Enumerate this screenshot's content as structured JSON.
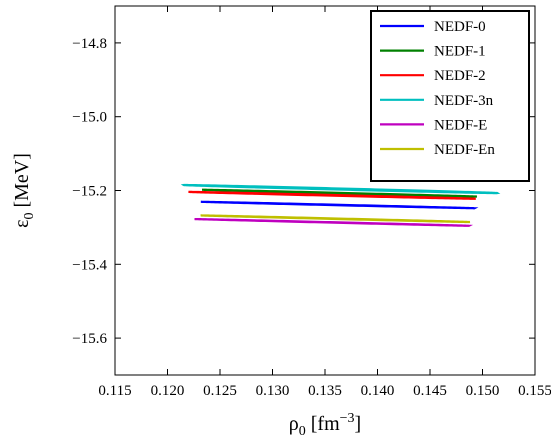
{
  "chart_data": {
    "type": "line",
    "title": "",
    "xlabel": {
      "base": "ρ",
      "sub": "0",
      "unit_pre": " [fm",
      "sup": "−3",
      "unit_post": "]"
    },
    "ylabel": {
      "base": "ε",
      "sub": "0",
      "unit": " [MeV]"
    },
    "xlim": [
      0.115,
      0.155
    ],
    "ylim": [
      -15.7,
      -14.7
    ],
    "x_ticks": [
      0.115,
      0.12,
      0.125,
      0.13,
      0.135,
      0.14,
      0.145,
      0.15,
      0.155
    ],
    "x_tick_labels": [
      "0.115",
      "0.120",
      "0.125",
      "0.130",
      "0.135",
      "0.140",
      "0.145",
      "0.150",
      "0.155"
    ],
    "y_ticks": [
      -14.8,
      -15.0,
      -15.2,
      -15.4,
      -15.6
    ],
    "y_tick_labels": [
      "−14.8",
      "−15.0",
      "−15.2",
      "−15.4",
      "−15.6"
    ],
    "grid": false,
    "legend_position": "top-right",
    "series": [
      {
        "name": "NEDF-0",
        "color": "#0000ff",
        "ellipse": {
          "cx": 0.1362,
          "cy": -15.2393,
          "a": 0.01567,
          "b": 0.00052,
          "angle_deg": -33.8
        }
      },
      {
        "name": "NEDF-1",
        "color": "#008000",
        "ellipse": {
          "cx": 0.13638,
          "cy": -15.2072,
          "a": 0.01602,
          "b": 0.00066,
          "angle_deg": -35.3
        }
      },
      {
        "name": "NEDF-2",
        "color": "#ff0000",
        "ellipse": {
          "cx": 0.13568,
          "cy": -15.2131,
          "a": 0.01654,
          "b": 0.00077,
          "angle_deg": -34.3
        }
      },
      {
        "name": "NEDF-3n",
        "color": "#00bfbf",
        "ellipse": {
          "cx": 0.13648,
          "cy": -15.1961,
          "a": 0.01848,
          "b": 0.00117,
          "angle_deg": -36.2
        }
      },
      {
        "name": "NEDF-E",
        "color": "#bf00bf",
        "ellipse": {
          "cx": 0.13564,
          "cy": -15.2865,
          "a": 0.01593,
          "b": 0.00046,
          "angle_deg": -34.9
        }
      },
      {
        "name": "NEDF-En",
        "color": "#bfbf00",
        "ellipse": {
          "cx": 0.13598,
          "cy": -15.2765,
          "a": 0.01564,
          "b": 0.00057,
          "angle_deg": -35.0
        }
      }
    ]
  }
}
